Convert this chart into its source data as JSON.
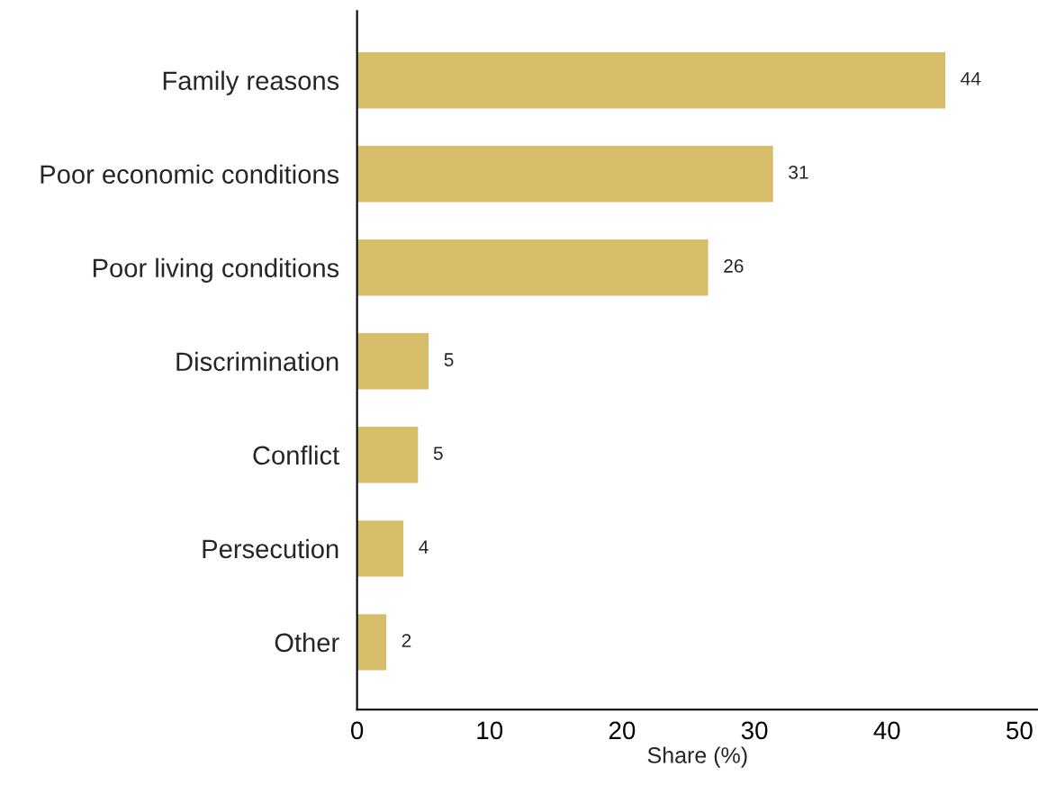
{
  "chart_data": {
    "type": "bar",
    "orientation": "horizontal",
    "xlabel": "Share (%)",
    "categories": [
      "Family reasons",
      "Poor economic conditions",
      "Poor living conditions",
      "Discrimination",
      "Conflict",
      "Persecution",
      "Other"
    ],
    "values": [
      44.4,
      31.4,
      26.5,
      5.4,
      4.6,
      3.5,
      2.2
    ],
    "value_labels": [
      "44",
      "31",
      "26",
      "5",
      "5",
      "4",
      "2"
    ],
    "color": "#d7bd6a",
    "xlim": [
      0,
      51.4
    ],
    "xticks": [
      0,
      10,
      20,
      30,
      40,
      50
    ],
    "grid": false,
    "legend": false
  }
}
